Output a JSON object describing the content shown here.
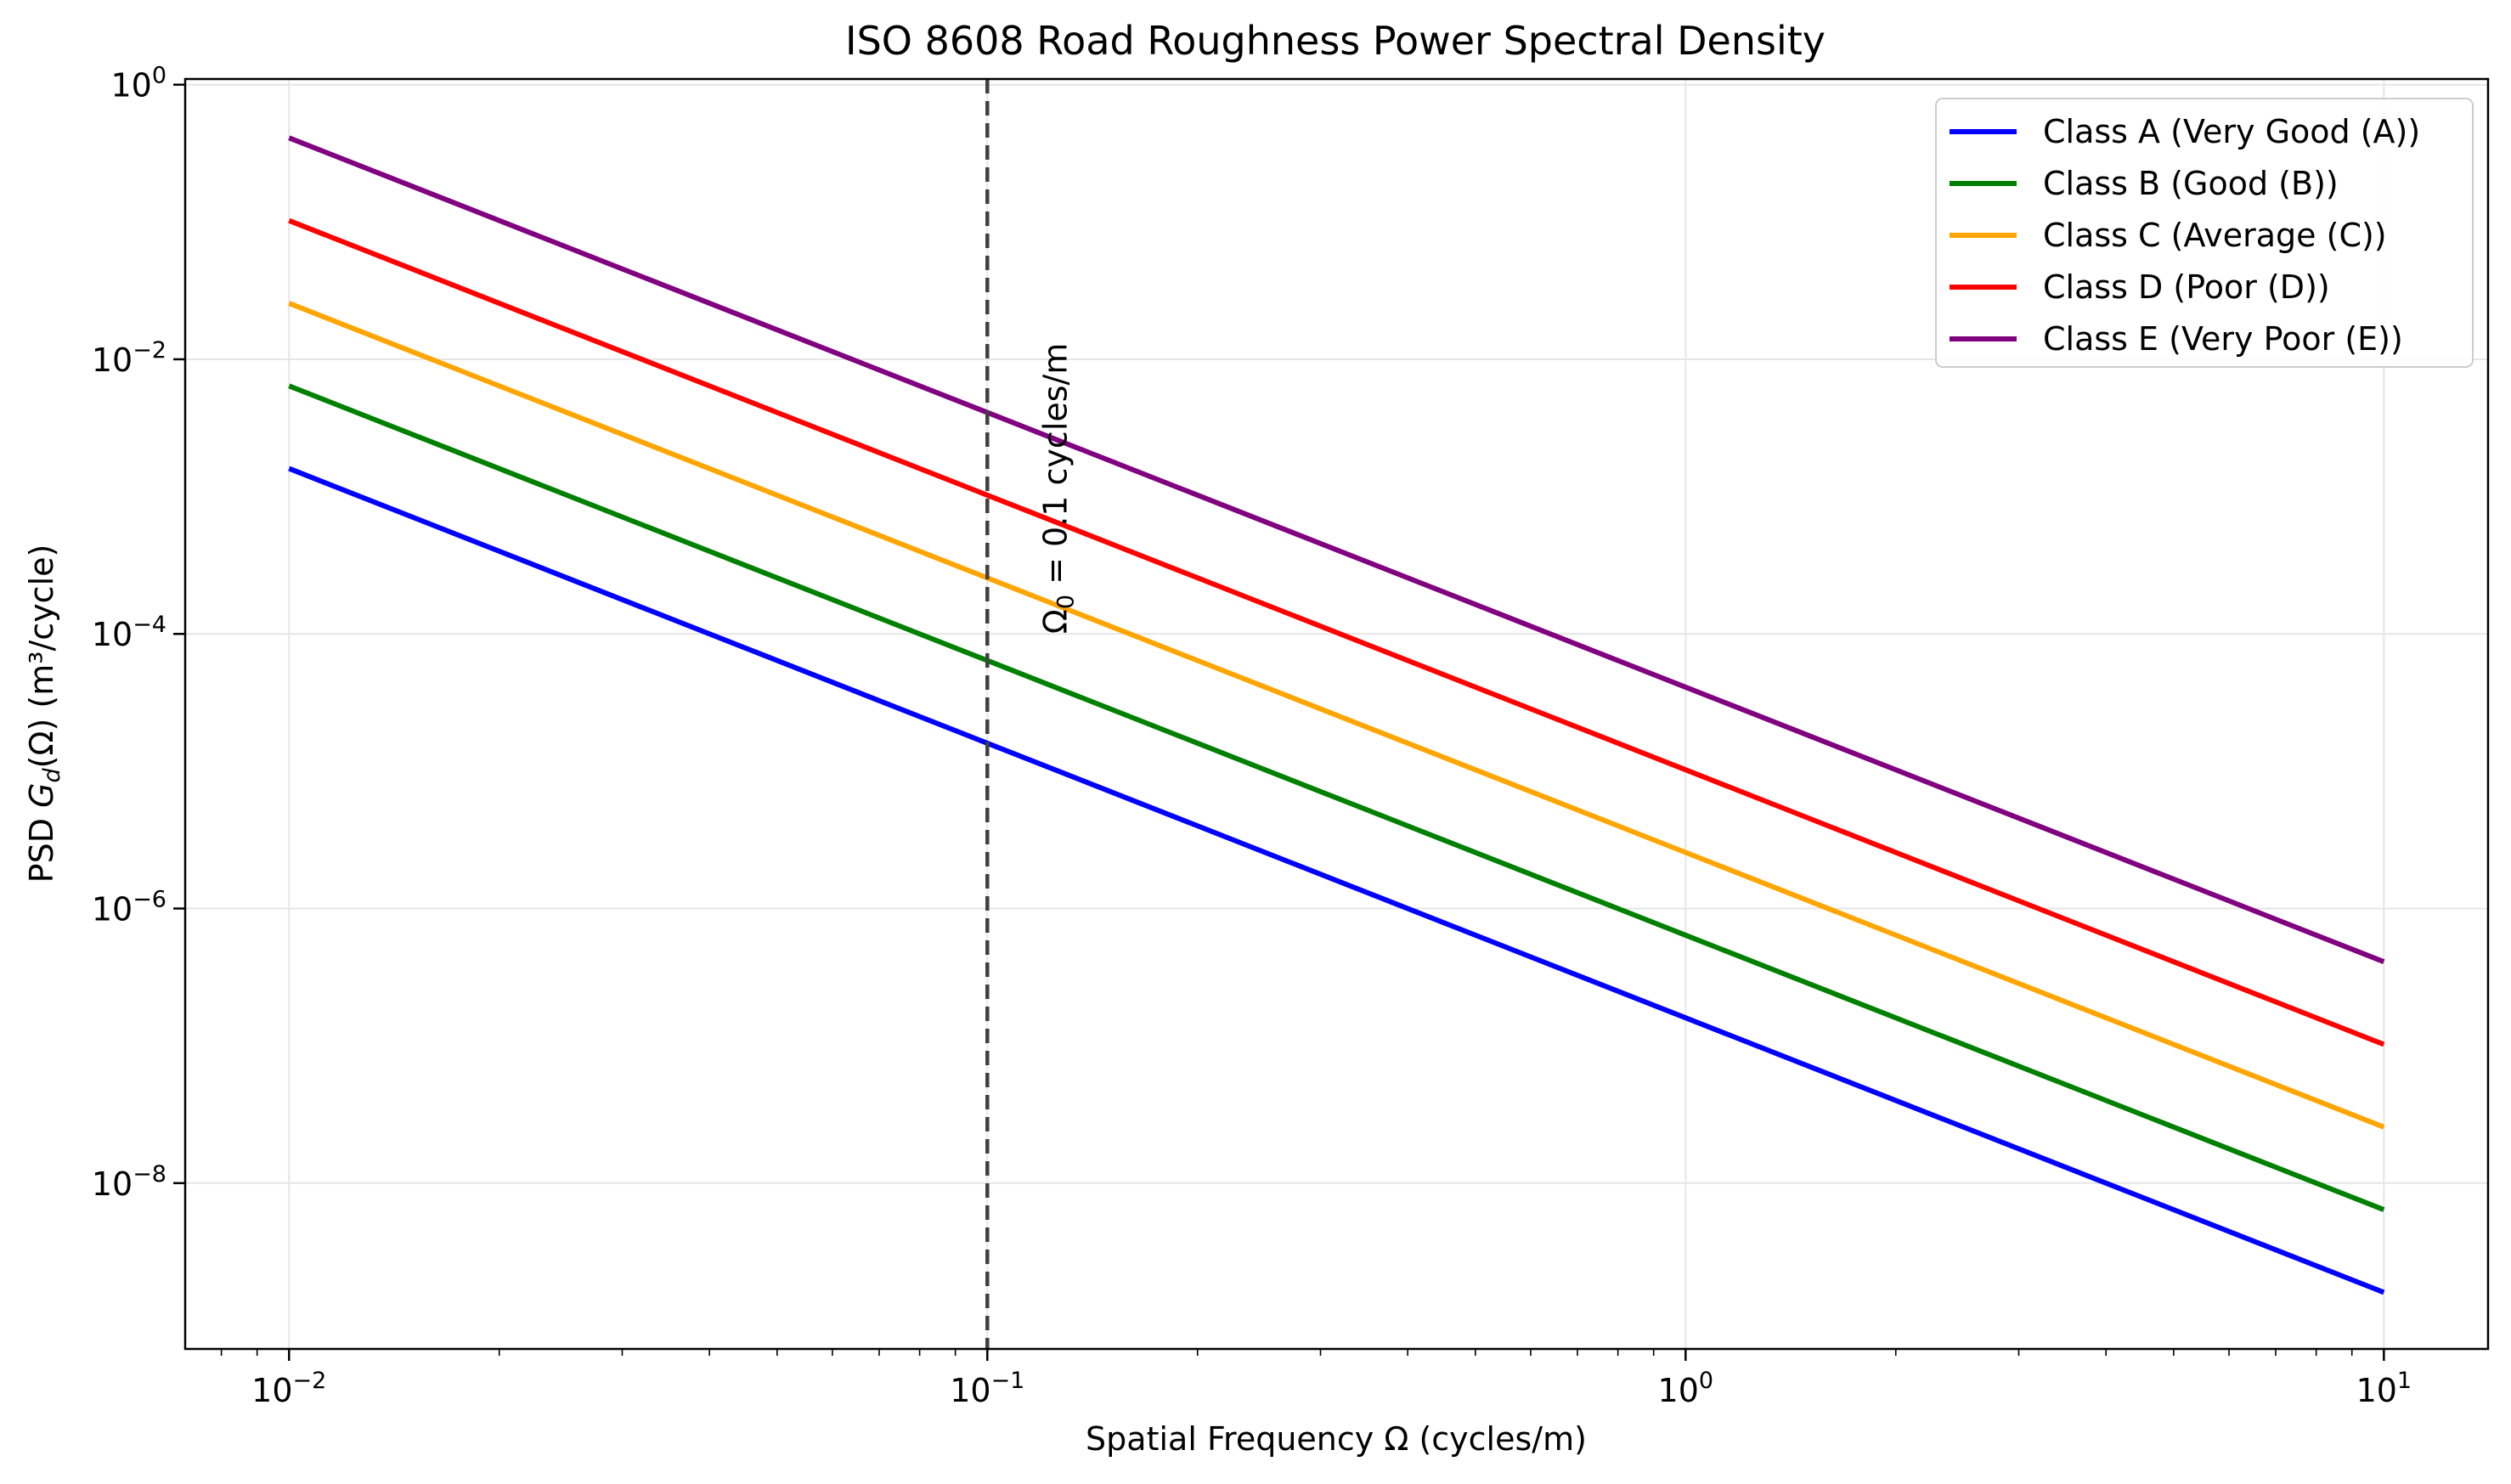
{
  "chart_data": {
    "type": "line",
    "title": "ISO 8608 Road Roughness Power Spectral Density",
    "xlabel": "Spatial Frequency Ω (cycles/m)",
    "ylabel_parts": {
      "prefix": "PSD ",
      "symbol": "G",
      "subscript": "d",
      "suffix": "(Ω) (m³/cycle)"
    },
    "x_scale": "log",
    "y_scale": "log",
    "xlim": [
      0.0071,
      14.1
    ],
    "ylim": [
      6.2e-10,
      1.1
    ],
    "grid": true,
    "legend_position": "top-right",
    "x_ticks": [
      {
        "base": "10",
        "exp": "−2",
        "value": 0.01
      },
      {
        "base": "10",
        "exp": "−1",
        "value": 0.1
      },
      {
        "base": "10",
        "exp": "0",
        "value": 1
      },
      {
        "base": "10",
        "exp": "1",
        "value": 10
      }
    ],
    "y_ticks": [
      {
        "base": "10",
        "exp": "−8",
        "value": 1e-08
      },
      {
        "base": "10",
        "exp": "−6",
        "value": 1e-06
      },
      {
        "base": "10",
        "exp": "−4",
        "value": 0.0001
      },
      {
        "base": "10",
        "exp": "−2",
        "value": 0.01
      },
      {
        "base": "10",
        "exp": "0",
        "value": 1
      }
    ],
    "series": [
      {
        "name": "Class A (Very Good (A))",
        "color": "#0000ff",
        "x": [
          0.01,
          0.1,
          1,
          10
        ],
        "y": [
          0.0016,
          1.6e-05,
          1.6e-07,
          1.6e-09
        ]
      },
      {
        "name": "Class B (Good (B))",
        "color": "#008000",
        "x": [
          0.01,
          0.1,
          1,
          10
        ],
        "y": [
          0.0064,
          6.4e-05,
          6.4e-07,
          6.4e-09
        ]
      },
      {
        "name": "Class C (Average (C))",
        "color": "#ffa500",
        "x": [
          0.01,
          0.1,
          1,
          10
        ],
        "y": [
          0.0256,
          0.000256,
          2.56e-06,
          2.56e-08
        ]
      },
      {
        "name": "Class D (Poor (D))",
        "color": "#ff0000",
        "x": [
          0.01,
          0.1,
          1,
          10
        ],
        "y": [
          0.1024,
          0.001024,
          1.024e-05,
          1.024e-07
        ]
      },
      {
        "name": "Class E (Very Poor (E))",
        "color": "#800080",
        "x": [
          0.01,
          0.1,
          1,
          10
        ],
        "y": [
          0.4096,
          0.004096,
          4.096e-05,
          4.096e-07
        ]
      }
    ],
    "reference_line": {
      "x": 0.1,
      "color": "#404040",
      "style": "dashed"
    },
    "annotation": {
      "symbol": "Ω",
      "subscript": "0",
      "text": " = 0.1 cycles/m",
      "x": 0.12,
      "y": 0.0001
    }
  }
}
